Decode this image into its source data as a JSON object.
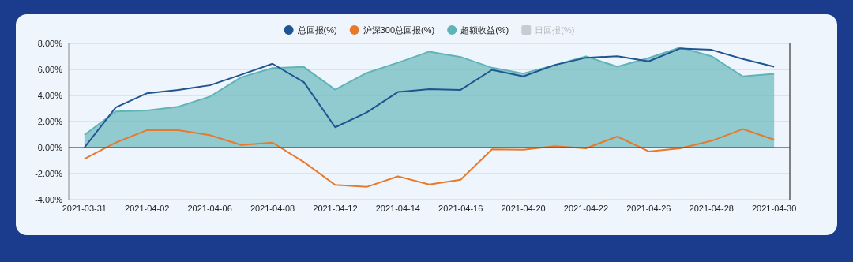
{
  "chart_data": {
    "type": "line",
    "categories": [
      "2021-03-31",
      null,
      "2021-04-02",
      null,
      "2021-04-06",
      null,
      "2021-04-08",
      null,
      "2021-04-12",
      null,
      "2021-04-14",
      null,
      "2021-04-16",
      null,
      "2021-04-20",
      null,
      "2021-04-22",
      null,
      "2021-04-26",
      null,
      "2021-04-28",
      null,
      "2021-04-30"
    ],
    "series": [
      {
        "name": "总回报(%)",
        "color": "#1f5591",
        "values": [
          0,
          3.08,
          4.17,
          4.43,
          4.78,
          5.6,
          6.44,
          5.02,
          1.56,
          2.69,
          4.27,
          4.49,
          4.43,
          5.97,
          5.47,
          6.34,
          6.9,
          7.02,
          6.62,
          7.61,
          7.51,
          6.8,
          6.21
        ]
      },
      {
        "name": "沪深300总回报(%)",
        "color": "#e8792b",
        "values": [
          -0.87,
          0.38,
          1.34,
          1.34,
          0.95,
          0.2,
          0.38,
          -1.11,
          -2.87,
          -3.02,
          -2.21,
          -2.83,
          -2.47,
          -0.14,
          -0.16,
          0.1,
          -0.06,
          0.85,
          -0.3,
          -0.06,
          0.51,
          1.42,
          0.61
        ]
      },
      {
        "name": "超额收益(%)",
        "type": "area",
        "color": "#5fb4b8",
        "values": [
          0.97,
          2.77,
          2.85,
          3.14,
          3.91,
          5.4,
          6.11,
          6.19,
          4.45,
          5.73,
          6.52,
          7.37,
          6.96,
          6.13,
          5.69,
          6.34,
          7.0,
          6.21,
          6.88,
          7.69,
          7.02,
          5.47,
          5.67
        ]
      },
      {
        "name": "日回报(%)",
        "type": "bar",
        "color": "#c8ccd0",
        "values": [
          null,
          null,
          null,
          null,
          null,
          null,
          null,
          null,
          null,
          null,
          null,
          null,
          null,
          null,
          null,
          null,
          null,
          null,
          null,
          null,
          null,
          null,
          null
        ]
      }
    ],
    "ylim": [
      -4,
      8
    ],
    "yticks": [
      {
        "value": -4,
        "label": "-4.00%"
      },
      {
        "value": -2,
        "label": "-2.00%"
      },
      {
        "value": 0,
        "label": "0.00%"
      },
      {
        "value": 2,
        "label": "2.00%"
      },
      {
        "value": 4,
        "label": "4.00%"
      },
      {
        "value": 6,
        "label": "6.00%"
      },
      {
        "value": 8,
        "label": "8.00%"
      }
    ],
    "grid": "y",
    "legend": "top",
    "marker": "none"
  }
}
